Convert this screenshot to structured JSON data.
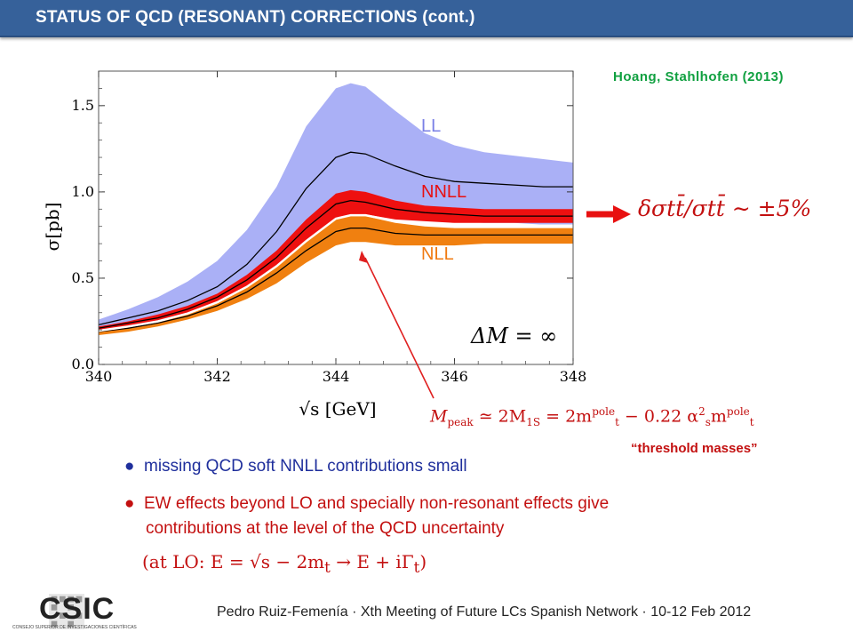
{
  "header": {
    "title": "STATUS OF QCD (RESONANT) CORRECTIONS (cont.)"
  },
  "citation": "Hoang, Stahlhofen (2013)",
  "chart_data": {
    "type": "area",
    "xlabel": "√s [GeV]",
    "ylabel": "σ[pb]",
    "xlim": [
      340,
      348
    ],
    "ylim": [
      0.0,
      1.7
    ],
    "xticks": [
      "340",
      "342",
      "344",
      "346",
      "348"
    ],
    "yticks": [
      "0.0",
      "0.5",
      "1.0",
      "1.5"
    ],
    "annotation": "ΔM = ∞",
    "x": [
      340.0,
      340.5,
      341.0,
      341.5,
      342.0,
      342.5,
      343.0,
      343.5,
      344.0,
      344.25,
      344.5,
      345.0,
      345.5,
      346.0,
      346.5,
      347.0,
      347.5,
      348.0
    ],
    "series": [
      {
        "name": "LL",
        "color": "#aab0f6",
        "upper": [
          0.26,
          0.32,
          0.39,
          0.48,
          0.6,
          0.78,
          1.03,
          1.38,
          1.6,
          1.63,
          1.61,
          1.47,
          1.34,
          1.27,
          1.23,
          1.21,
          1.19,
          1.17
        ],
        "lower": [
          0.2,
          0.23,
          0.26,
          0.31,
          0.38,
          0.47,
          0.58,
          0.74,
          0.87,
          0.89,
          0.89,
          0.86,
          0.84,
          0.83,
          0.82,
          0.82,
          0.81,
          0.81
        ],
        "central": [
          0.23,
          0.27,
          0.31,
          0.37,
          0.45,
          0.58,
          0.77,
          1.02,
          1.2,
          1.23,
          1.22,
          1.15,
          1.09,
          1.06,
          1.05,
          1.04,
          1.03,
          1.03
        ]
      },
      {
        "name": "NLL",
        "color": "#f08010",
        "upper": [
          0.2,
          0.22,
          0.25,
          0.3,
          0.36,
          0.45,
          0.57,
          0.71,
          0.84,
          0.86,
          0.86,
          0.82,
          0.8,
          0.79,
          0.79,
          0.79,
          0.79,
          0.79
        ],
        "lower": [
          0.17,
          0.19,
          0.22,
          0.26,
          0.31,
          0.38,
          0.47,
          0.59,
          0.69,
          0.71,
          0.71,
          0.69,
          0.69,
          0.69,
          0.7,
          0.7,
          0.7,
          0.7
        ],
        "central": [
          0.19,
          0.21,
          0.24,
          0.28,
          0.34,
          0.42,
          0.53,
          0.66,
          0.77,
          0.79,
          0.79,
          0.76,
          0.75,
          0.75,
          0.75,
          0.75,
          0.75,
          0.75
        ]
      },
      {
        "name": "NNLL",
        "color": "#ee1010",
        "upper": [
          0.22,
          0.25,
          0.29,
          0.34,
          0.41,
          0.52,
          0.66,
          0.84,
          0.99,
          1.01,
          1.0,
          0.95,
          0.92,
          0.91,
          0.9,
          0.9,
          0.9,
          0.9
        ],
        "lower": [
          0.19,
          0.22,
          0.25,
          0.29,
          0.36,
          0.45,
          0.57,
          0.72,
          0.85,
          0.87,
          0.87,
          0.84,
          0.83,
          0.82,
          0.82,
          0.82,
          0.82,
          0.82
        ],
        "central": [
          0.21,
          0.24,
          0.27,
          0.32,
          0.39,
          0.49,
          0.62,
          0.79,
          0.93,
          0.95,
          0.94,
          0.9,
          0.88,
          0.87,
          0.86,
          0.86,
          0.86,
          0.86
        ]
      }
    ]
  },
  "labels": {
    "ll": "LL",
    "nnll": "NNLL",
    "nll": "NLL"
  },
  "formulas": {
    "delta": "δσtt̄/σtt̄ ∼ ±5%",
    "mpeak_lhs": "M",
    "mpeak_lhs_sub": "peak",
    "mpeak_mid": " ≃ 2M",
    "mpeak_mid_sub": "1S",
    "mpeak_rhs1": " = 2m",
    "mpeak_rhs1_sup": "pole",
    "mpeak_rhs1_sub": "t",
    "mpeak_rhs2": " − 0.22 α",
    "mpeak_rhs2_sup": "2",
    "mpeak_rhs2_sub": "s",
    "mpeak_rhs3": "m",
    "mpeak_rhs3_sup": "pole",
    "mpeak_rhs3_sub": "t",
    "lo": "(at LO:   E = √s − 2m",
    "lo_sub": "t",
    "lo_rest": " → E + iΓ",
    "lo_sub2": "t",
    "lo_close": ")"
  },
  "threshold_label": "“threshold masses”",
  "bullets": {
    "b1": "missing QCD soft NNLL contributions small",
    "b2_line1": "EW effects beyond LO and specially non-resonant effects give",
    "b2_line2": "contributions at the level of the QCD uncertainty",
    "dot": "●"
  },
  "footer": {
    "logo": "CSIC",
    "logo_sub": "CONSEJO SUPERIOR DE INVESTIGACIONES CIENTÍFICAS",
    "text": "Pedro Ruiz-Femenía · Xth Meeting of Future LCs Spanish Network · 10-12 Feb 2012"
  },
  "colors": {
    "header": "#36619a",
    "accent_red": "#c31010",
    "citation": "#10a040",
    "bullet_blue": "#1f2f9c"
  }
}
